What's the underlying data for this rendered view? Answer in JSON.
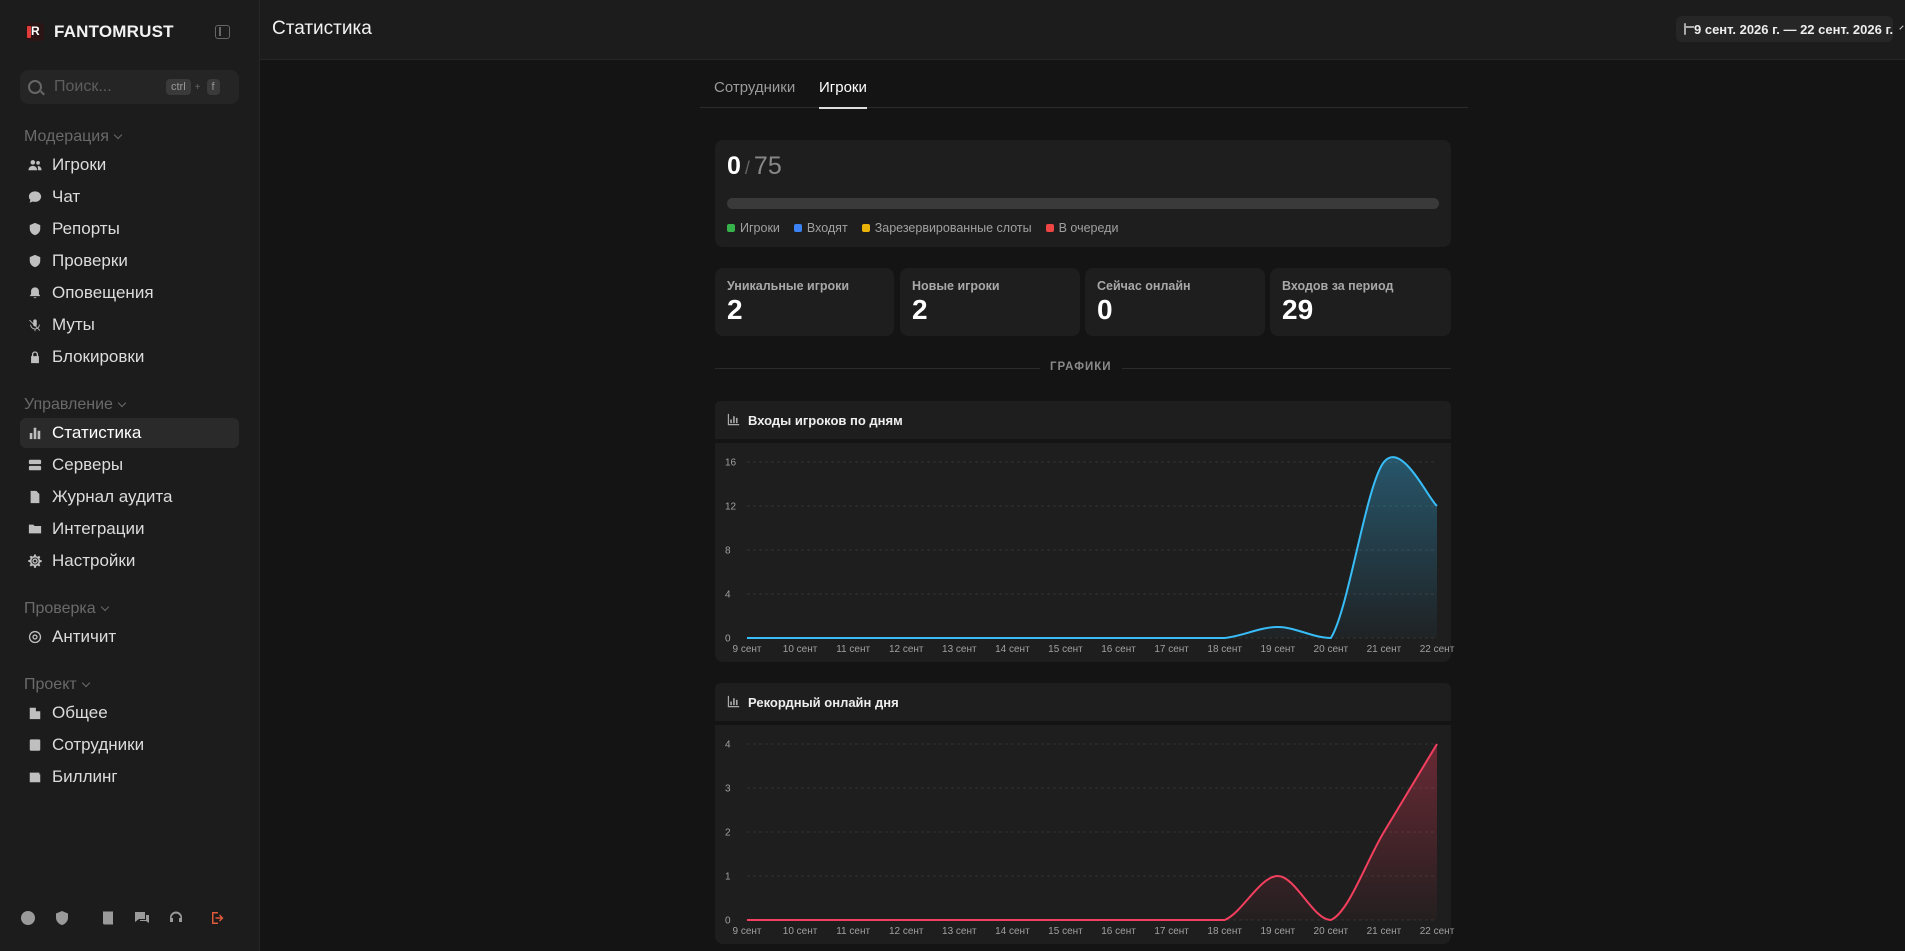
{
  "app": {
    "name": "FANTOMRUST"
  },
  "search": {
    "placeholder": "Поиск...",
    "kbd1": "ctrl",
    "kbd_plus": "+",
    "kbd2": "f"
  },
  "sidebar": {
    "sections": [
      {
        "title": "Модерация",
        "items": [
          {
            "label": "Игроки",
            "icon": "users-icon"
          },
          {
            "label": "Чат",
            "icon": "chat-icon"
          },
          {
            "label": "Репорты",
            "icon": "shield-alert-icon"
          },
          {
            "label": "Проверки",
            "icon": "shield-check-icon"
          },
          {
            "label": "Оповещения",
            "icon": "bell-icon"
          },
          {
            "label": "Муты",
            "icon": "mic-off-icon"
          },
          {
            "label": "Блокировки",
            "icon": "lock-icon"
          }
        ]
      },
      {
        "title": "Управление",
        "items": [
          {
            "label": "Статистика",
            "icon": "bar-chart-icon",
            "active": true
          },
          {
            "label": "Серверы",
            "icon": "server-icon"
          },
          {
            "label": "Журнал аудита",
            "icon": "file-icon"
          },
          {
            "label": "Интеграции",
            "icon": "folder-link-icon"
          },
          {
            "label": "Настройки",
            "icon": "gear-icon"
          }
        ]
      },
      {
        "title": "Проверка",
        "items": [
          {
            "label": "Античит",
            "icon": "radar-icon"
          }
        ]
      },
      {
        "title": "Проект",
        "items": [
          {
            "label": "Общее",
            "icon": "building-icon"
          },
          {
            "label": "Сотрудники",
            "icon": "contacts-icon"
          },
          {
            "label": "Биллинг",
            "icon": "wallet-icon"
          }
        ]
      }
    ]
  },
  "header": {
    "title": "Статистика",
    "date_range": "9 сент. 2026 г. — 22 сент. 2026 г."
  },
  "tabs": [
    {
      "label": "Сотрудники"
    },
    {
      "label": "Игроки",
      "active": true
    }
  ],
  "capacity": {
    "current": "0",
    "separator": "/",
    "max": "75",
    "fill_fraction": 0,
    "legend": [
      {
        "label": "Игроки",
        "color": "#36b24a"
      },
      {
        "label": "Входят",
        "color": "#3b82f6"
      },
      {
        "label": "Зарезервированные слоты",
        "color": "#eab308"
      },
      {
        "label": "В очереди",
        "color": "#ef4444"
      }
    ]
  },
  "stats": [
    {
      "label": "Уникальные игроки",
      "value": "2"
    },
    {
      "label": "Новые игроки",
      "value": "2"
    },
    {
      "label": "Сейчас онлайн",
      "value": "0"
    },
    {
      "label": "Входов за период",
      "value": "29"
    }
  ],
  "divider_label": "ГРАФИКИ",
  "chart_data": [
    {
      "type": "area",
      "title": "Входы игроков по дням",
      "categories": [
        "9 сент",
        "10 сент",
        "11 сент",
        "12 сент",
        "13 сент",
        "14 сент",
        "15 сент",
        "16 сент",
        "17 сент",
        "18 сент",
        "19 сент",
        "20 сент",
        "21 сент",
        "22 сент"
      ],
      "values": [
        0,
        0,
        0,
        0,
        0,
        0,
        0,
        0,
        0,
        0,
        1,
        0,
        16,
        12
      ],
      "yticks": [
        0,
        4,
        8,
        12,
        16
      ],
      "ylim": [
        0,
        16
      ],
      "color": "#38bdf8",
      "grid": true
    },
    {
      "type": "area",
      "title": "Рекордный онлайн дня",
      "categories": [
        "9 сент",
        "10 сент",
        "11 сент",
        "12 сент",
        "13 сент",
        "14 сент",
        "15 сент",
        "16 сент",
        "17 сент",
        "18 сент",
        "19 сент",
        "20 сент",
        "21 сент",
        "22 сент"
      ],
      "values": [
        0,
        0,
        0,
        0,
        0,
        0,
        0,
        0,
        0,
        0,
        1,
        0,
        2,
        4
      ],
      "yticks": [
        0,
        1,
        2,
        3,
        4
      ],
      "ylim": [
        0,
        4
      ],
      "color": "#f43f5e",
      "grid": true
    }
  ]
}
